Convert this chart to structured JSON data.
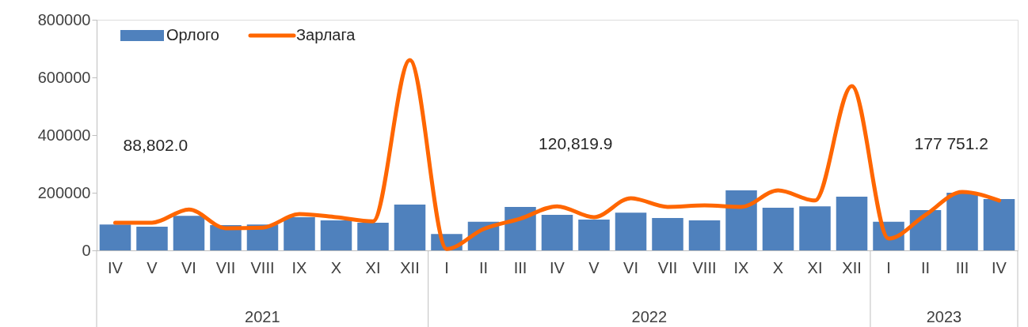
{
  "chart_data": {
    "type": "bar",
    "categories": [
      "IV",
      "V",
      "VI",
      "VII",
      "VIII",
      "IX",
      "X",
      "XI",
      "XII",
      "I",
      "II",
      "III",
      "IV",
      "V",
      "VI",
      "VII",
      "VIII",
      "IX",
      "X",
      "XI",
      "XII",
      "I",
      "II",
      "III",
      "IV"
    ],
    "series": [
      {
        "name": "Орлого",
        "color": "#4f81bd",
        "values": [
          90000,
          82000,
          120000,
          88000,
          90000,
          115000,
          104000,
          96000,
          159000,
          57000,
          99000,
          151000,
          123000,
          107000,
          131000,
          112000,
          104000,
          208000,
          148000,
          153000,
          186000,
          99000,
          140000,
          200000,
          178000
        ]
      },
      {
        "name": "Зарлага",
        "type": "line",
        "color": "#ff6600",
        "values": [
          96000,
          96000,
          142000,
          77000,
          79000,
          126000,
          115000,
          101000,
          660000,
          5000,
          74000,
          110000,
          153000,
          115000,
          181000,
          151000,
          156000,
          151000,
          208000,
          173000,
          570000,
          41000,
          123000,
          203000,
          173000
        ]
      }
    ],
    "ylim": [
      0,
      800000
    ],
    "yticks": [
      0,
      200000,
      400000,
      600000,
      800000
    ],
    "grid": false,
    "legend": "top left",
    "marker": "none",
    "line_style": "solid",
    "annotations": [
      "88,802.0",
      "120,819.9",
      "177 751.2",
      "2021",
      "2022",
      "2023"
    ]
  }
}
